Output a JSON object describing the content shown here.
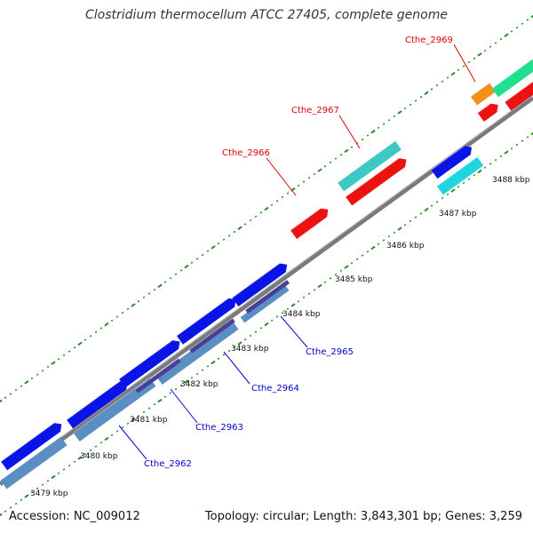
{
  "header": {
    "title": "Clostridium thermocellum ATCC 27405, complete genome"
  },
  "footer": {
    "accession": "Accession: NC_009012",
    "summary": "Topology: circular; Length: 3,843,301 bp; Genes: 3,259"
  },
  "ticks": [
    {
      "label": "3479 kbp"
    },
    {
      "label": "3480 kbp"
    },
    {
      "label": "3481 kbp"
    },
    {
      "label": "3482 kbp"
    },
    {
      "label": "3483 kbp"
    },
    {
      "label": "3484 kbp"
    },
    {
      "label": "3485 kbp"
    },
    {
      "label": "3486 kbp"
    },
    {
      "label": "3487 kbp"
    },
    {
      "label": "3488 kbp"
    }
  ],
  "gene_labels": [
    {
      "name": "Cthe_2969",
      "color": "#e00000"
    },
    {
      "name": "Cthe_2967",
      "color": "#e00000"
    },
    {
      "name": "Cthe_2966",
      "color": "#e00000"
    },
    {
      "name": "Cthe_2965",
      "color": "#0000cc"
    },
    {
      "name": "Cthe_2964",
      "color": "#0000cc"
    },
    {
      "name": "Cthe_2963",
      "color": "#0000cc"
    },
    {
      "name": "Cthe_2962",
      "color": "#0000cc"
    }
  ],
  "colors": {
    "blue": "#0a14e6",
    "steel": "#5b8fc4",
    "purple": "#4a3f96",
    "red": "#ee1111",
    "cyan": "#20d4e0",
    "teal": "#3cc9c4",
    "orange": "#f39018",
    "green": "#20e090",
    "backbone": "#808080",
    "tick": "#2a8a2a"
  }
}
